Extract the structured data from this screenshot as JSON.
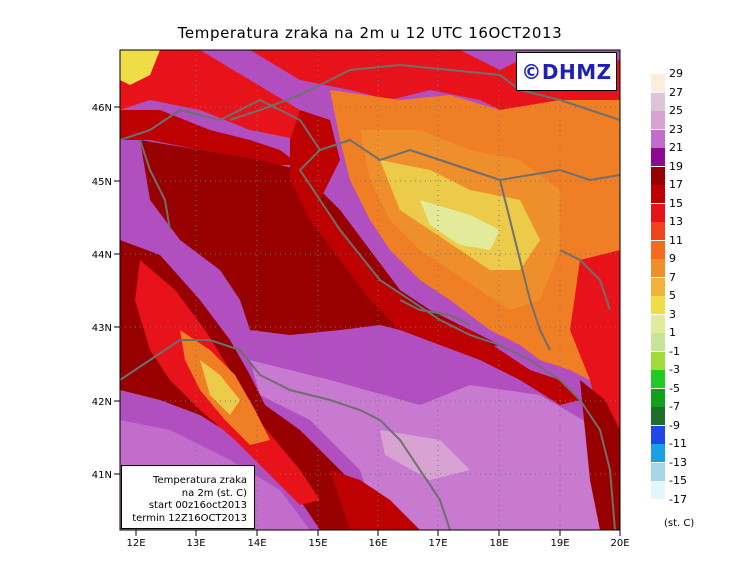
{
  "title": "Temperatura zraka na 2m u 12 UTC 16OCT2013",
  "logo_text": "©DHMZ",
  "info_box": {
    "line1": "Temperatura zraka",
    "line2": "na 2m (st. C)",
    "line3": "start 00z16oct2013",
    "line4": "termin 12Z16OCT2013"
  },
  "lat_labels": [
    "46N",
    "45N",
    "44N",
    "43N",
    "42N",
    "41N"
  ],
  "lon_labels": [
    "12E",
    "13E",
    "14E",
    "15E",
    "16E",
    "17E",
    "18E",
    "19E",
    "20E"
  ],
  "legend": {
    "unit": "(st. C)",
    "labels": [
      "29",
      "27",
      "25",
      "23",
      "21",
      "19",
      "17",
      "15",
      "13",
      "11",
      "9",
      "7",
      "5",
      "3",
      "1",
      "-1",
      "-3",
      "-5",
      "-7",
      "-9",
      "-11",
      "-13",
      "-15",
      "-17"
    ],
    "colors": [
      "#fbeedd",
      "#dcc5d6",
      "#d8a3d3",
      "#c26ccb",
      "#8c0a8c",
      "#970000",
      "#bd0000",
      "#e8131a",
      "#f2441c",
      "#f46a21",
      "#ef8f2c",
      "#f0b23a",
      "#eedd46",
      "#e3ea9a",
      "#c5e49a",
      "#9fdc37",
      "#22c922",
      "#11a01c",
      "#1e6f2b",
      "#2046e8",
      "#1aa1e5",
      "#a4d6e8",
      "#e3f6fa"
    ]
  },
  "colors": {
    "sea": "#b14fc1",
    "sea_light": "#c879d0",
    "coast_hot": "#980000",
    "land_warm": "#e84a1c",
    "land_mild": "#f07e25",
    "inland_cool": "#eccb4a",
    "border_line": "#6f6f6f"
  }
}
